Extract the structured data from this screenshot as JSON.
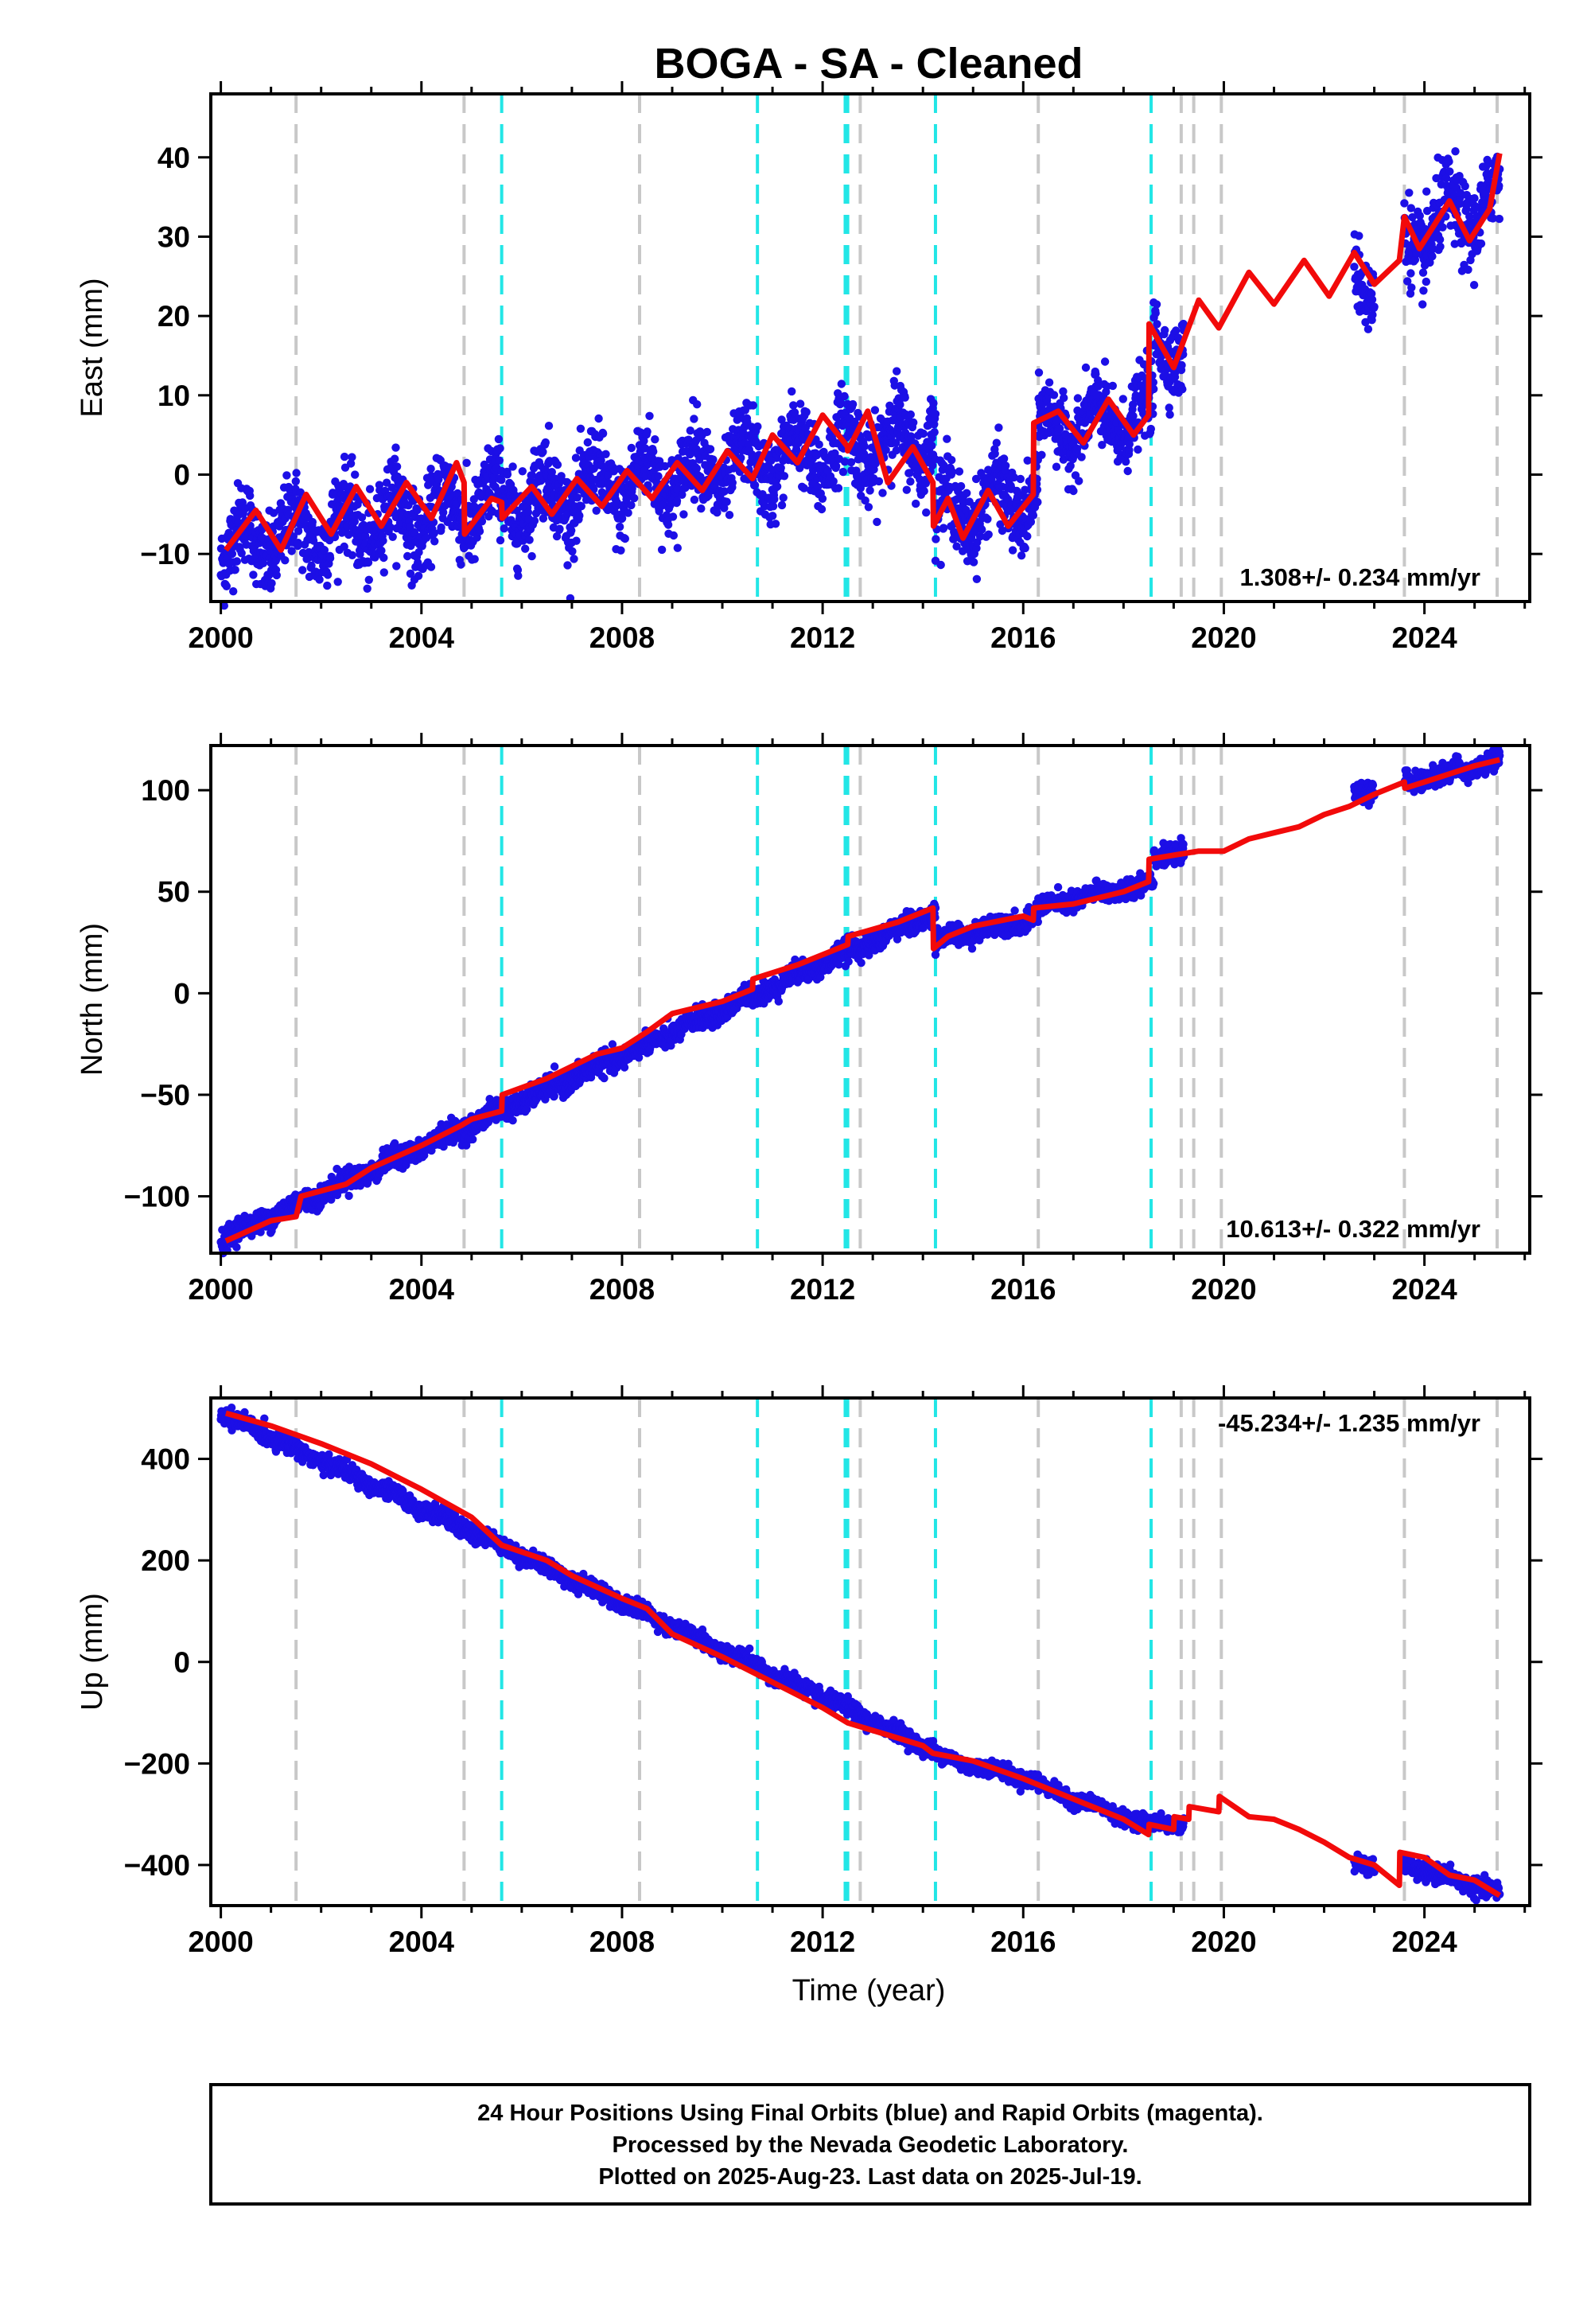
{
  "title": "BOGA  - SA - Cleaned",
  "xlabel": "Time (year)",
  "footer": {
    "lines": [
      "24 Hour Positions Using Final Orbits (blue) and Rapid Orbits (magenta).",
      "Processed by the Nevada Geodetic Laboratory.",
      "Plotted on 2025-Aug-23. Last data on 2025-Jul-19."
    ]
  },
  "colors": {
    "data_points": "#1c0fe6",
    "model_line": "#f20a0a",
    "equipment_change": "#c8c8c8",
    "earthquake": "#22e6e6",
    "frame": "#000000"
  },
  "chart_data": [
    {
      "type": "scatter",
      "name": "east",
      "ylabel": "East (mm)",
      "xlim": [
        1999.8,
        2026.1
      ],
      "ylim": [
        -16,
        48
      ],
      "xticks": [
        2000,
        2004,
        2008,
        2012,
        2016,
        2020,
        2024
      ],
      "yticks": [
        -10,
        0,
        10,
        20,
        30,
        40
      ],
      "rate_label": "1.308+/- 0.234 mm/yr",
      "rate_position": "bottom-right",
      "grid": false,
      "model": [
        [
          2000.1,
          -9.5
        ],
        [
          2000.7,
          -4.5
        ],
        [
          2001.2,
          -9.5
        ],
        [
          2001.7,
          -2.5
        ],
        [
          2002.2,
          -7.5
        ],
        [
          2002.7,
          -1.5
        ],
        [
          2003.2,
          -6.5
        ],
        [
          2003.7,
          -1.0
        ],
        [
          2004.2,
          -5.5
        ],
        [
          2004.7,
          1.5
        ],
        [
          2004.85,
          -1.0
        ],
        [
          2004.86,
          -7.5
        ],
        [
          2005.4,
          -3.0
        ],
        [
          2005.6,
          -3.5
        ],
        [
          2005.61,
          -5.5
        ],
        [
          2006.2,
          -1.5
        ],
        [
          2006.6,
          -5.0
        ],
        [
          2007.1,
          -0.5
        ],
        [
          2007.6,
          -4.0
        ],
        [
          2008.1,
          0.5
        ],
        [
          2008.6,
          -3.0
        ],
        [
          2009.1,
          1.5
        ],
        [
          2009.6,
          -2.0
        ],
        [
          2010.1,
          3.0
        ],
        [
          2010.6,
          -0.5
        ],
        [
          2011.0,
          5.0
        ],
        [
          2011.5,
          1.5
        ],
        [
          2012.0,
          7.5
        ],
        [
          2012.5,
          3.5
        ],
        [
          2012.5,
          3.0
        ],
        [
          2012.9,
          8.0
        ],
        [
          2013.3,
          -1.0
        ],
        [
          2013.8,
          3.5
        ],
        [
          2014.2,
          -1.0
        ],
        [
          2014.21,
          -6.5
        ],
        [
          2014.5,
          -3.0
        ],
        [
          2014.8,
          -8.0
        ],
        [
          2015.3,
          -2.0
        ],
        [
          2015.7,
          -6.5
        ],
        [
          2016.2,
          -2.5
        ],
        [
          2016.21,
          6.5
        ],
        [
          2016.7,
          8.0
        ],
        [
          2017.2,
          4.0
        ],
        [
          2017.7,
          9.5
        ],
        [
          2018.2,
          5.0
        ],
        [
          2018.5,
          7.5
        ],
        [
          2018.51,
          19.0
        ],
        [
          2019.0,
          13.5
        ],
        [
          2019.5,
          22.0
        ],
        [
          2019.9,
          18.5
        ],
        [
          2020.5,
          25.5
        ],
        [
          2021.0,
          21.5
        ],
        [
          2021.6,
          27.0
        ],
        [
          2022.1,
          22.5
        ],
        [
          2022.6,
          28.0
        ],
        [
          2023.0,
          24.0
        ],
        [
          2023.5,
          27.0
        ],
        [
          2023.6,
          32.5
        ],
        [
          2023.9,
          28.5
        ],
        [
          2024.5,
          34.5
        ],
        [
          2024.9,
          29.5
        ],
        [
          2025.3,
          33.5
        ],
        [
          2025.5,
          40.5
        ]
      ],
      "data_segments": [
        {
          "x": [
            2000.0,
            2014.25
          ],
          "start": -9.0,
          "end": 5.0,
          "amplitude": 3.0,
          "scatter": 2.6
        },
        {
          "x": [
            2014.25,
            2016.3
          ],
          "start": -5.0,
          "end": -2.5,
          "amplitude": 3.0,
          "scatter": 2.4
        },
        {
          "x": [
            2016.3,
            2018.6
          ],
          "start": 5.5,
          "end": 7.5,
          "amplitude": 2.5,
          "scatter": 2.2
        },
        {
          "x": [
            2018.6,
            2019.2
          ],
          "start": 17.5,
          "end": 15.0,
          "amplitude": 2.0,
          "scatter": 2.2
        },
        {
          "x": [
            2022.6,
            2023.0
          ],
          "start": 25.0,
          "end": 24.0,
          "amplitude": 2.5,
          "scatter": 2.5
        },
        {
          "x": [
            2023.6,
            2025.5
          ],
          "start": 29.5,
          "end": 35.0,
          "amplitude": 3.0,
          "scatter": 2.6
        }
      ]
    },
    {
      "type": "scatter",
      "name": "north",
      "ylabel": "North (mm)",
      "xlim": [
        1999.8,
        2026.1
      ],
      "ylim": [
        -128,
        122
      ],
      "xticks": [
        2000,
        2004,
        2008,
        2012,
        2016,
        2020,
        2024
      ],
      "yticks": [
        -100,
        -50,
        0,
        50,
        100
      ],
      "rate_label": "10.613+/- 0.322 mm/yr",
      "rate_position": "bottom-right",
      "grid": false,
      "model": [
        [
          2000.1,
          -122
        ],
        [
          2001.0,
          -112
        ],
        [
          2001.5,
          -110
        ],
        [
          2001.6,
          -100
        ],
        [
          2002.5,
          -94
        ],
        [
          2003.0,
          -86
        ],
        [
          2004.0,
          -75
        ],
        [
          2004.8,
          -65
        ],
        [
          2005.0,
          -62
        ],
        [
          2005.6,
          -58
        ],
        [
          2005.61,
          -50
        ],
        [
          2006.5,
          -42
        ],
        [
          2007.5,
          -30
        ],
        [
          2008.0,
          -27
        ],
        [
          2008.5,
          -19
        ],
        [
          2009.0,
          -10
        ],
        [
          2010.0,
          -4
        ],
        [
          2010.6,
          2
        ],
        [
          2010.61,
          7
        ],
        [
          2011.5,
          14
        ],
        [
          2012.0,
          19
        ],
        [
          2012.5,
          24
        ],
        [
          2012.51,
          28
        ],
        [
          2013.5,
          35
        ],
        [
          2014.2,
          42
        ],
        [
          2014.21,
          22
        ],
        [
          2014.5,
          28
        ],
        [
          2015.0,
          33
        ],
        [
          2016.0,
          38
        ],
        [
          2016.2,
          36
        ],
        [
          2016.21,
          42
        ],
        [
          2017.0,
          44
        ],
        [
          2018.0,
          50
        ],
        [
          2018.5,
          55
        ],
        [
          2018.51,
          66
        ],
        [
          2019.0,
          68
        ],
        [
          2019.5,
          70
        ],
        [
          2020.0,
          70
        ],
        [
          2020.5,
          76
        ],
        [
          2021.0,
          79
        ],
        [
          2021.5,
          82
        ],
        [
          2022.0,
          88
        ],
        [
          2022.5,
          92
        ],
        [
          2023.0,
          98
        ],
        [
          2023.6,
          104
        ],
        [
          2023.61,
          101
        ],
        [
          2024.0,
          104
        ],
        [
          2024.5,
          108
        ],
        [
          2025.0,
          112
        ],
        [
          2025.5,
          115
        ]
      ],
      "data_segments": [
        {
          "x": [
            2000.0,
            2014.25
          ],
          "start": -121.0,
          "end": 40.0,
          "amplitude": 1.5,
          "scatter": 2.6
        },
        {
          "x": [
            2014.25,
            2016.3
          ],
          "start": 26.0,
          "end": 38.0,
          "amplitude": 1.5,
          "scatter": 2.4
        },
        {
          "x": [
            2016.3,
            2018.6
          ],
          "start": 42.0,
          "end": 55.0,
          "amplitude": 1.5,
          "scatter": 2.4
        },
        {
          "x": [
            2018.6,
            2019.2
          ],
          "start": 67.0,
          "end": 70.0,
          "amplitude": 1.0,
          "scatter": 2.2
        },
        {
          "x": [
            2022.6,
            2023.0
          ],
          "start": 98.0,
          "end": 100.0,
          "amplitude": 1.0,
          "scatter": 2.2
        },
        {
          "x": [
            2023.6,
            2025.5
          ],
          "start": 104.0,
          "end": 114.0,
          "amplitude": 1.5,
          "scatter": 2.4
        }
      ]
    },
    {
      "type": "scatter",
      "name": "up",
      "ylabel": "Up (mm)",
      "xlim": [
        1999.8,
        2026.1
      ],
      "ylim": [
        -480,
        520
      ],
      "xticks": [
        2000,
        2004,
        2008,
        2012,
        2016,
        2020,
        2024
      ],
      "yticks": [
        -400,
        -200,
        0,
        200,
        400
      ],
      "rate_label": "-45.234+/- 1.235 mm/yr",
      "rate_position": "top-right",
      "grid": false,
      "model": [
        [
          2000.1,
          490
        ],
        [
          2001.0,
          465
        ],
        [
          2002.0,
          430
        ],
        [
          2003.0,
          390
        ],
        [
          2004.0,
          340
        ],
        [
          2005.0,
          285
        ],
        [
          2005.6,
          230
        ],
        [
          2006.5,
          200
        ],
        [
          2007.0,
          170
        ],
        [
          2008.0,
          125
        ],
        [
          2008.5,
          105
        ],
        [
          2009.0,
          55
        ],
        [
          2010.0,
          10
        ],
        [
          2011.0,
          -40
        ],
        [
          2012.0,
          -90
        ],
        [
          2012.5,
          -120
        ],
        [
          2013.0,
          -135
        ],
        [
          2014.0,
          -165
        ],
        [
          2014.2,
          -180
        ],
        [
          2015.0,
          -195
        ],
        [
          2016.0,
          -230
        ],
        [
          2017.0,
          -270
        ],
        [
          2018.0,
          -310
        ],
        [
          2018.5,
          -340
        ],
        [
          2018.51,
          -320
        ],
        [
          2019.0,
          -330
        ],
        [
          2019.01,
          -305
        ],
        [
          2019.3,
          -310
        ],
        [
          2019.31,
          -285
        ],
        [
          2019.9,
          -295
        ],
        [
          2019.91,
          -265
        ],
        [
          2020.5,
          -305
        ],
        [
          2021.0,
          -310
        ],
        [
          2021.5,
          -330
        ],
        [
          2022.0,
          -355
        ],
        [
          2022.5,
          -385
        ],
        [
          2023.0,
          -400
        ],
        [
          2023.5,
          -440
        ],
        [
          2023.51,
          -375
        ],
        [
          2024.0,
          -385
        ],
        [
          2024.5,
          -420
        ],
        [
          2025.0,
          -430
        ],
        [
          2025.5,
          -460
        ]
      ],
      "data_segments": [
        {
          "x": [
            2000.0,
            2014.25
          ],
          "start": 490.0,
          "end": -175.0,
          "amplitude": 5.0,
          "scatter": 8.0
        },
        {
          "x": [
            2014.25,
            2016.3
          ],
          "start": -185.0,
          "end": -235.0,
          "amplitude": 5.0,
          "scatter": 7.0
        },
        {
          "x": [
            2016.3,
            2018.6
          ],
          "start": -245.0,
          "end": -325.0,
          "amplitude": 5.0,
          "scatter": 7.0
        },
        {
          "x": [
            2018.6,
            2019.2
          ],
          "start": -315.0,
          "end": -320.0,
          "amplitude": 4.0,
          "scatter": 7.0
        },
        {
          "x": [
            2022.6,
            2023.0
          ],
          "start": -395.0,
          "end": -405.0,
          "amplitude": 4.0,
          "scatter": 8.0
        },
        {
          "x": [
            2023.6,
            2025.5
          ],
          "start": -400.0,
          "end": -455.0,
          "amplitude": 5.0,
          "scatter": 8.0
        }
      ]
    }
  ],
  "equipment_changes": [
    2001.5,
    2004.85,
    2008.35,
    2012.75,
    2016.3,
    2019.15,
    2019.4,
    2019.95,
    2023.6,
    2025.45
  ],
  "earthquakes": [
    2005.6,
    2010.7,
    2012.45,
    2012.5,
    2014.25,
    2018.55
  ]
}
